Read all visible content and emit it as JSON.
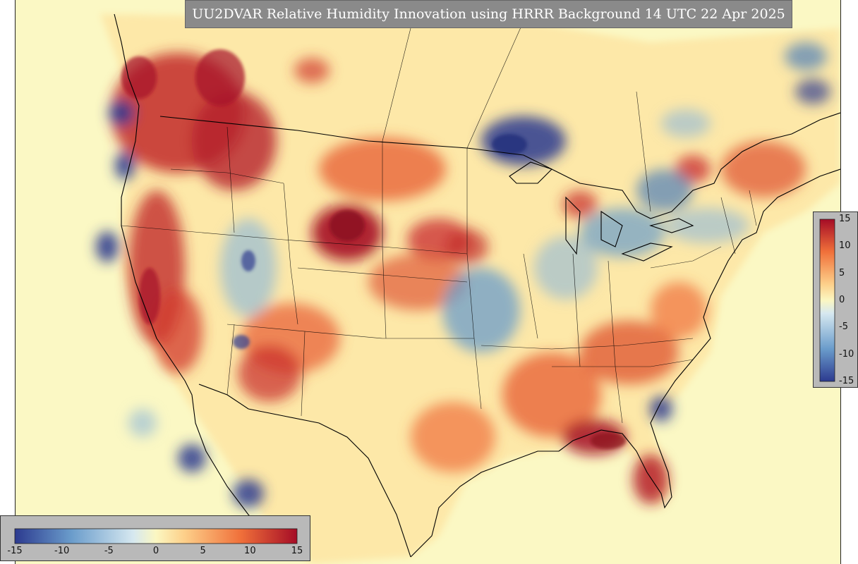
{
  "map": {
    "title": "UU2DVAR Relative Humidity Innovation using HRRR Background 14 UTC 22 Apr 2025",
    "region": "CONUS",
    "variable": "Relative Humidity Innovation",
    "background_model": "HRRR",
    "valid_time": "14 UTC 22 Apr 2025"
  },
  "colorbar": {
    "min": -15,
    "max": 15,
    "ticks_horizontal": [
      "-15",
      "-10",
      "-5",
      "0",
      "5",
      "10",
      "15"
    ],
    "ticks_vertical": [
      "15",
      "10",
      "5",
      "0",
      "-5",
      "-10",
      "-15"
    ],
    "colors": {
      "neg_max": "#2c3a8f",
      "neg_mid": "#6a9ccb",
      "neg_low": "#d6e8f0",
      "zero": "#fbf7c2",
      "pos_low": "#fdd08a",
      "pos_mid": "#f0703a",
      "pos_max": "#a50c26"
    }
  }
}
